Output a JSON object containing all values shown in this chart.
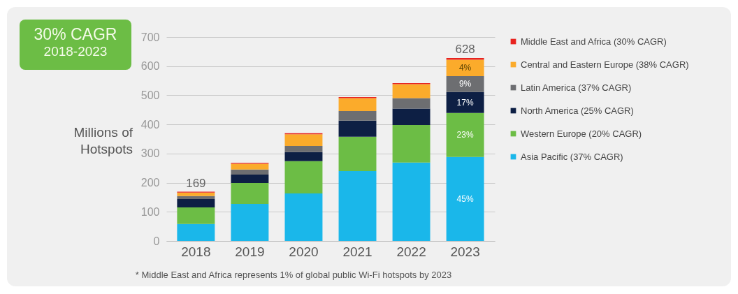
{
  "chart_data": {
    "type": "bar",
    "stacked": true,
    "title": "30% CAGR",
    "subtitle": "2018-2023",
    "ylabel": "Millions of Hotspots",
    "categories": [
      "2018",
      "2019",
      "2020",
      "2021",
      "2022",
      "2023"
    ],
    "series": [
      {
        "name": "Asia Pacific (37% CAGR)",
        "color": "#1ab7ea",
        "values": [
          58,
          127,
          163,
          240,
          269,
          288
        ]
      },
      {
        "name": "Western Europe (20% CAGR)",
        "color": "#6cbd45",
        "values": [
          57,
          72,
          111,
          118,
          129,
          151
        ]
      },
      {
        "name": "North America (25% CAGR)",
        "color": "#0d1f44",
        "values": [
          29,
          29,
          31,
          55,
          56,
          72
        ]
      },
      {
        "name": "Latin America (37% CAGR)",
        "color": "#6d6e71",
        "values": [
          10,
          17,
          21,
          33,
          36,
          55
        ]
      },
      {
        "name": "Central and Eastern Europe (38% CAGR)",
        "color": "#fbab2b",
        "values": [
          12,
          20,
          40,
          44,
          48,
          56
        ]
      },
      {
        "name": "Middle East and Africa (30% CAGR)",
        "color": "#e8231f",
        "values": [
          3,
          3,
          4,
          4,
          4,
          6
        ]
      }
    ],
    "totals": [
      "169",
      null,
      null,
      null,
      null,
      "628"
    ],
    "ylim": [
      0,
      700
    ],
    "yticks": [
      0,
      100,
      200,
      300,
      400,
      500,
      600,
      700
    ],
    "grid": "y",
    "legend": "right",
    "annotations": [
      "45%",
      "23%",
      "17%",
      "9%",
      "4%",
      "* Middle East and Africa represents 1% of global public Wi-Fi hotspots by 2023"
    ]
  }
}
